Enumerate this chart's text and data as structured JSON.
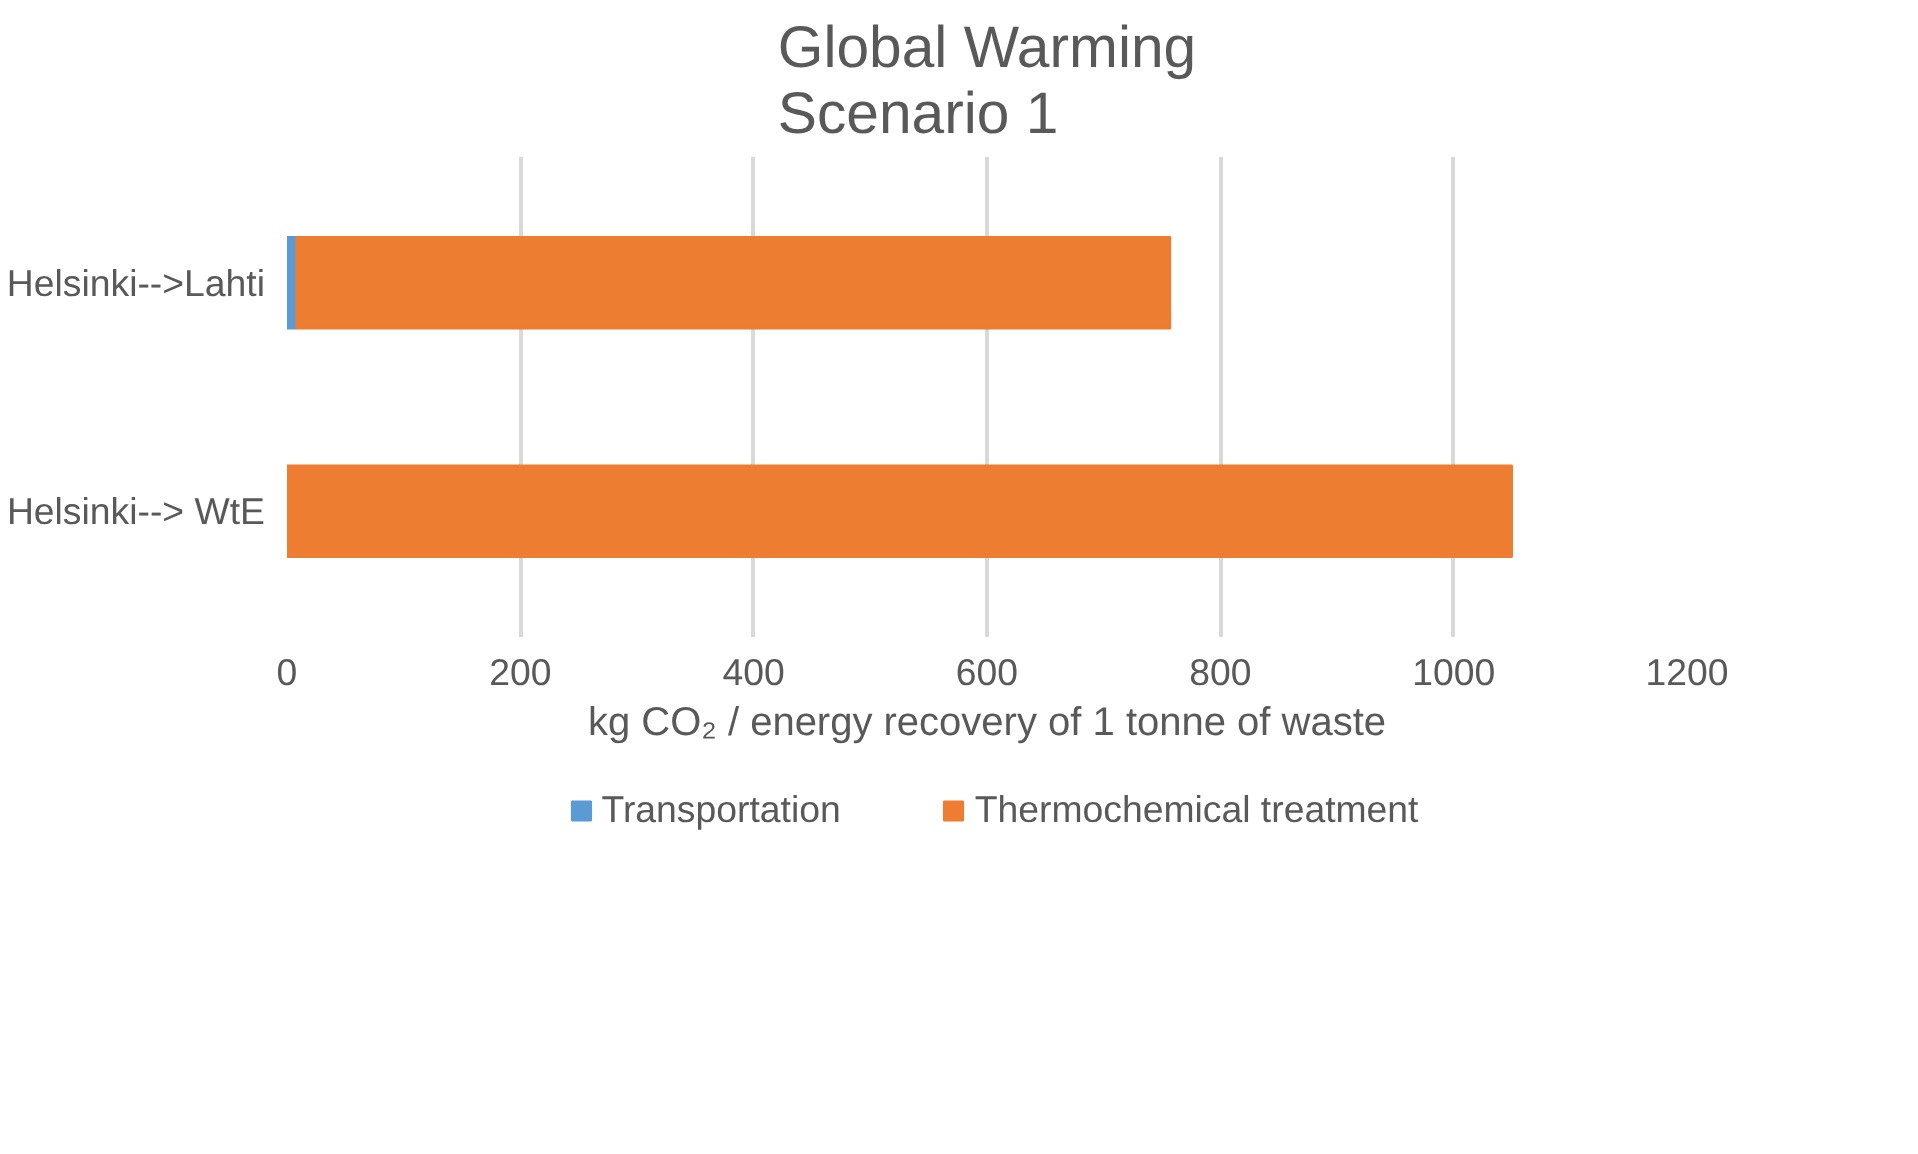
{
  "chart_data": {
    "type": "bar",
    "orientation": "horizontal",
    "stacked": true,
    "title": "Global Warming\nScenario 1",
    "categories": [
      "Helsinki-->Lahti",
      "Helsinki--> WtE"
    ],
    "series": [
      {
        "name": "Transportation",
        "color": "#5b9bd5",
        "values": [
          8,
          null
        ]
      },
      {
        "name": "Thermochemical treatment",
        "color": "#ed7d31",
        "values": [
          749,
          1050
        ]
      }
    ],
    "xlabel": "kg CO₂ / energy recovery of 1 tonne of waste",
    "xlim": [
      0,
      1200
    ],
    "xticks": [
      0,
      200,
      400,
      600,
      800,
      1000,
      1200
    ],
    "grid": "x",
    "legend": "bottom"
  }
}
